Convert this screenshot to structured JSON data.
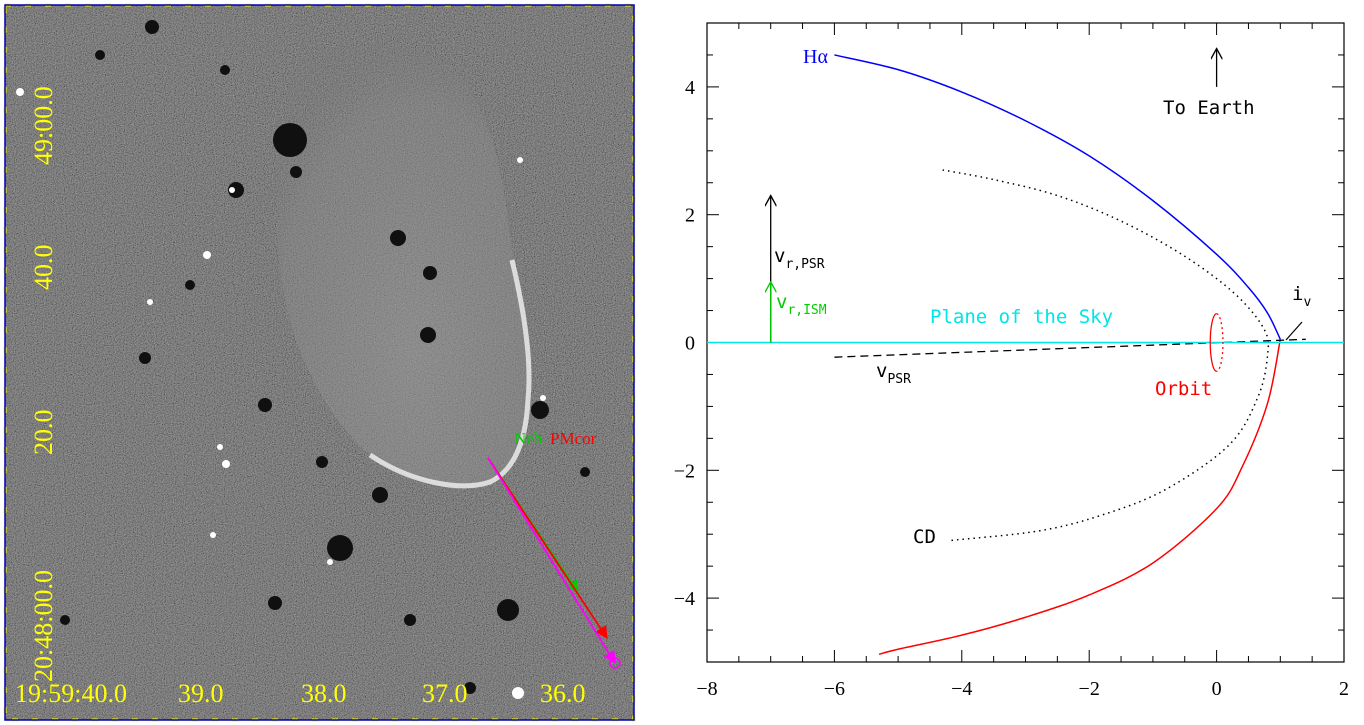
{
  "left_panel": {
    "ra_labels": [
      "19:59:40.0",
      "39.0",
      "38.0",
      "37.0",
      "36.0"
    ],
    "dec_labels": [
      "20:48:00.0",
      "20.0",
      "40.0",
      "49:00.0"
    ],
    "legend": {
      "neb": "Neb",
      "pmcor": "PMcor"
    },
    "colors": {
      "labels": "#ffff00",
      "neb_arrow": "#00cc00",
      "pmcor_arrow": "#ff0000",
      "path_arrow": "#ff00ff",
      "frame": "#0000aa"
    }
  },
  "right_panel": {
    "annotations": {
      "halpha": "Hα",
      "to_earth": "To Earth",
      "plane_of_sky": "Plane of the Sky",
      "orbit": "Orbit",
      "cd": "CD",
      "vr_psr": {
        "main": "v",
        "sub": "r,PSR"
      },
      "vr_ism": {
        "main": "v",
        "sub": "r,ISM"
      },
      "v_psr": {
        "main": "v",
        "sub": "PSR"
      },
      "i_v": {
        "main": "i",
        "sub": "v"
      }
    },
    "colors": {
      "halpha_label": "#0000ff",
      "halpha_curve": "#0000ff",
      "lower_curve": "#ff0000",
      "sky_line": "#00e5e5",
      "orbit": "#ff0000",
      "vr_ism": "#00cc00",
      "axis": "#000000"
    }
  },
  "chart_data": {
    "type": "line",
    "xlim": [
      -8,
      2
    ],
    "ylim": [
      -5,
      5
    ],
    "x_ticks": [
      -8,
      -6,
      -4,
      -2,
      0,
      2
    ],
    "y_ticks": [
      -4,
      -2,
      0,
      2,
      4
    ],
    "grid": false,
    "series": [
      {
        "style": "solid-blue",
        "x": [
          -6.0,
          -5.0,
          -4.0,
          -3.0,
          -2.0,
          -1.0,
          0.0,
          0.5,
          0.8,
          1.0
        ],
        "y": [
          4.5,
          4.27,
          3.92,
          3.47,
          2.92,
          2.22,
          1.38,
          0.86,
          0.46,
          0.05
        ]
      },
      {
        "style": "solid-red",
        "x": [
          1.0,
          0.8,
          0.4,
          0.0,
          -1.0,
          -2.0,
          -3.0,
          -4.0,
          -5.0,
          -5.3
        ],
        "y": [
          0.05,
          -0.95,
          -1.95,
          -2.6,
          -3.45,
          -3.95,
          -4.3,
          -4.58,
          -4.8,
          -4.88
        ]
      },
      {
        "style": "dotted-black",
        "x": [
          -4.3,
          -3.5,
          -2.5,
          -1.5,
          -0.5,
          0.3,
          0.75,
          0.8,
          0.65,
          0.2,
          -0.8,
          -1.8,
          -2.8,
          -4.2
        ],
        "y": [
          2.7,
          2.55,
          2.3,
          1.9,
          1.35,
          0.75,
          0.2,
          -0.2,
          -0.85,
          -1.6,
          -2.3,
          -2.7,
          -2.95,
          -3.1
        ]
      },
      {
        "style": "dashed-black",
        "x": [
          -6.0,
          1.4
        ],
        "y": [
          -0.23,
          0.05
        ]
      },
      {
        "style": "solid-cyan",
        "x": [
          -8,
          2
        ],
        "y": [
          0,
          0
        ]
      }
    ],
    "orbit_ellipse": {
      "cx": 0.0,
      "cy": 0.0,
      "rx": 0.1,
      "ry": 0.45
    },
    "arrows": [
      {
        "name": "to-earth",
        "x": 0.0,
        "y0": 4.0,
        "y1": 4.6
      },
      {
        "name": "vr-psr",
        "x": -7.0,
        "y0": 0.0,
        "y1": 2.3
      },
      {
        "name": "vr-ism",
        "x": -7.0,
        "y0": 0.0,
        "y1": 0.95
      }
    ]
  }
}
